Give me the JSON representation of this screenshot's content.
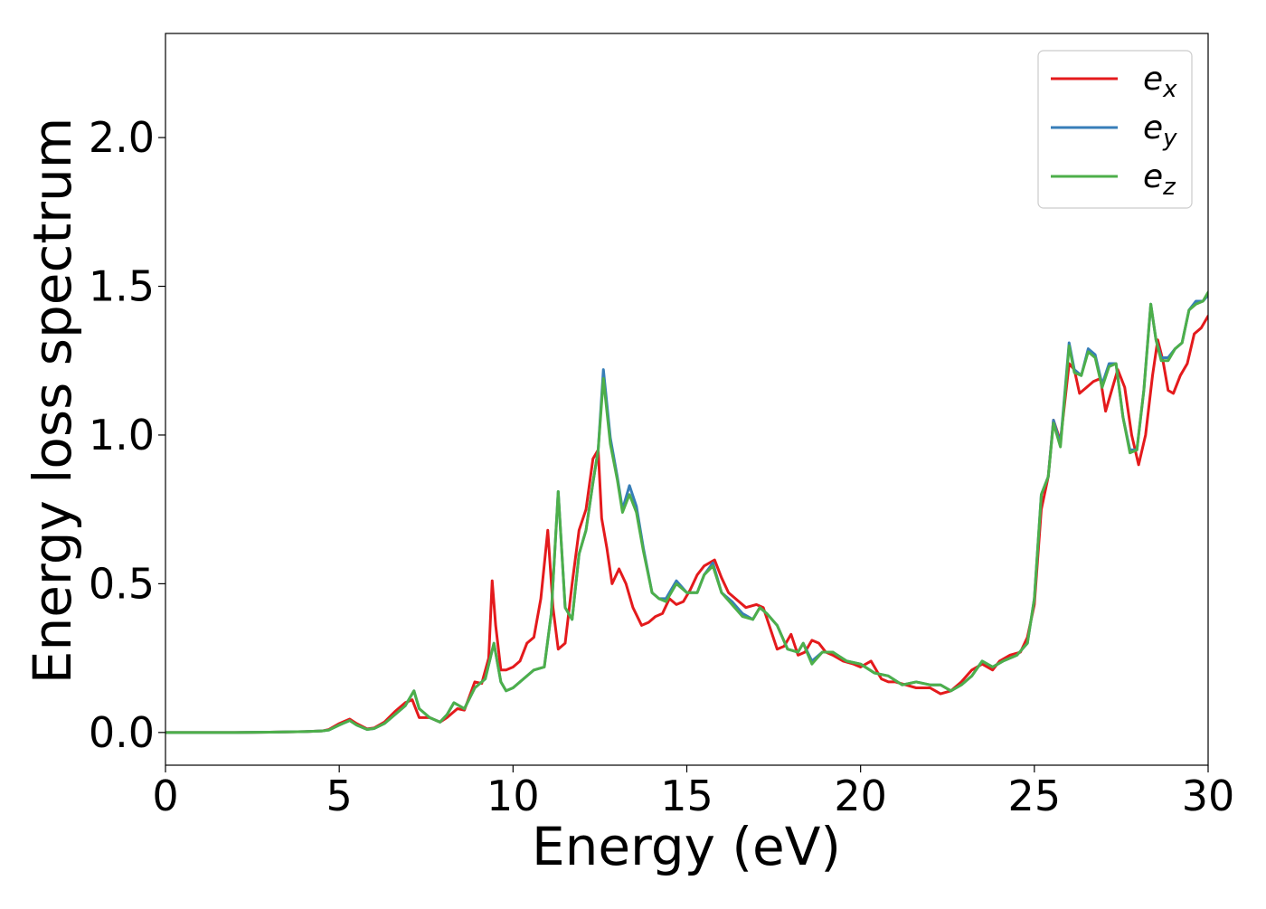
{
  "chart_data": {
    "type": "line",
    "title": "",
    "xlabel": "Energy (eV)",
    "ylabel": "Energy loss spectrum",
    "xlim": [
      0,
      30
    ],
    "ylim": [
      -0.11,
      2.35
    ],
    "xticks": [
      "0",
      "5",
      "10",
      "15",
      "20",
      "25",
      "30"
    ],
    "xtick_values": [
      0,
      5,
      10,
      15,
      20,
      25,
      30
    ],
    "yticks": [
      "0.0",
      "0.5",
      "1.0",
      "1.5",
      "2.0"
    ],
    "ytick_values": [
      0,
      0.5,
      1.0,
      1.5,
      2.0
    ],
    "grid": false,
    "legend_position": "top-right",
    "series": [
      {
        "name": "e_x",
        "label_base": "e",
        "label_sub": "x",
        "color": "#e41a1c",
        "x": [
          0,
          1,
          2,
          3,
          4,
          4.5,
          4.7,
          5.0,
          5.3,
          5.5,
          5.8,
          6.0,
          6.3,
          6.6,
          6.9,
          7.1,
          7.3,
          7.6,
          7.9,
          8.1,
          8.4,
          8.6,
          8.9,
          9.1,
          9.3,
          9.4,
          9.5,
          9.65,
          9.8,
          10.0,
          10.2,
          10.4,
          10.6,
          10.8,
          11.0,
          11.15,
          11.3,
          11.5,
          11.7,
          11.9,
          12.1,
          12.3,
          12.45,
          12.55,
          12.7,
          12.85,
          13.05,
          13.25,
          13.45,
          13.7,
          13.9,
          14.1,
          14.3,
          14.5,
          14.7,
          14.9,
          15.1,
          15.3,
          15.5,
          15.8,
          16.0,
          16.2,
          16.5,
          16.7,
          17.0,
          17.2,
          17.4,
          17.6,
          17.8,
          18.0,
          18.2,
          18.4,
          18.6,
          18.8,
          19.0,
          19.2,
          19.5,
          19.8,
          20.0,
          20.3,
          20.6,
          20.8,
          21.0,
          21.3,
          21.6,
          22.0,
          22.3,
          22.6,
          22.9,
          23.2,
          23.5,
          23.8,
          24.0,
          24.3,
          24.6,
          24.8,
          25.0,
          25.2,
          25.4,
          25.55,
          25.75,
          26.0,
          26.15,
          26.3,
          26.5,
          26.7,
          26.9,
          27.05,
          27.2,
          27.4,
          27.6,
          27.8,
          28.0,
          28.2,
          28.4,
          28.55,
          28.7,
          28.85,
          29.0,
          29.2,
          29.4,
          29.6,
          29.8,
          30.0
        ],
        "y": [
          0,
          0,
          0,
          0.001,
          0.003,
          0.005,
          0.01,
          0.03,
          0.045,
          0.03,
          0.012,
          0.015,
          0.035,
          0.07,
          0.1,
          0.11,
          0.05,
          0.05,
          0.035,
          0.05,
          0.08,
          0.075,
          0.17,
          0.165,
          0.25,
          0.51,
          0.36,
          0.21,
          0.21,
          0.22,
          0.24,
          0.3,
          0.32,
          0.45,
          0.68,
          0.42,
          0.28,
          0.3,
          0.5,
          0.68,
          0.75,
          0.92,
          0.95,
          0.72,
          0.62,
          0.5,
          0.55,
          0.5,
          0.42,
          0.36,
          0.37,
          0.39,
          0.4,
          0.45,
          0.43,
          0.44,
          0.48,
          0.53,
          0.56,
          0.58,
          0.52,
          0.47,
          0.44,
          0.42,
          0.43,
          0.42,
          0.35,
          0.28,
          0.29,
          0.33,
          0.26,
          0.27,
          0.31,
          0.3,
          0.27,
          0.26,
          0.24,
          0.23,
          0.22,
          0.24,
          0.18,
          0.17,
          0.17,
          0.16,
          0.15,
          0.15,
          0.13,
          0.14,
          0.17,
          0.21,
          0.23,
          0.21,
          0.24,
          0.26,
          0.27,
          0.32,
          0.43,
          0.75,
          0.86,
          1.05,
          0.98,
          1.24,
          1.22,
          1.14,
          1.16,
          1.18,
          1.19,
          1.08,
          1.14,
          1.22,
          1.16,
          1.0,
          0.9,
          1.0,
          1.2,
          1.32,
          1.25,
          1.15,
          1.14,
          1.2,
          1.24,
          1.34,
          1.36,
          1.4
        ]
      },
      {
        "name": "e_y",
        "label_base": "e",
        "label_sub": "y",
        "color": "#377eb8",
        "x": [
          0,
          1,
          2,
          3,
          4,
          4.5,
          4.7,
          5.0,
          5.3,
          5.5,
          5.8,
          6.0,
          6.3,
          6.6,
          6.9,
          7.15,
          7.3,
          7.6,
          7.9,
          8.1,
          8.3,
          8.6,
          8.9,
          9.2,
          9.45,
          9.65,
          9.8,
          10.0,
          10.3,
          10.6,
          10.9,
          11.1,
          11.3,
          11.5,
          11.7,
          11.9,
          12.1,
          12.3,
          12.45,
          12.6,
          12.8,
          13.0,
          13.15,
          13.35,
          13.55,
          13.75,
          14.0,
          14.2,
          14.4,
          14.7,
          15.0,
          15.3,
          15.5,
          15.75,
          16.0,
          16.3,
          16.6,
          16.9,
          17.1,
          17.3,
          17.6,
          17.9,
          18.2,
          18.35,
          18.6,
          18.9,
          19.2,
          19.6,
          20.0,
          20.4,
          20.8,
          21.2,
          21.6,
          22.0,
          22.3,
          22.6,
          22.9,
          23.2,
          23.5,
          23.8,
          24.1,
          24.5,
          24.8,
          25.0,
          25.2,
          25.4,
          25.55,
          25.75,
          26.0,
          26.15,
          26.35,
          26.55,
          26.75,
          26.95,
          27.15,
          27.35,
          27.55,
          27.75,
          27.95,
          28.15,
          28.35,
          28.5,
          28.65,
          28.85,
          29.05,
          29.25,
          29.45,
          29.65,
          29.85,
          30.0
        ],
        "y": [
          0,
          0,
          0,
          0.001,
          0.003,
          0.005,
          0.008,
          0.025,
          0.04,
          0.025,
          0.01,
          0.013,
          0.03,
          0.06,
          0.09,
          0.14,
          0.08,
          0.05,
          0.035,
          0.06,
          0.1,
          0.08,
          0.15,
          0.18,
          0.3,
          0.17,
          0.14,
          0.15,
          0.18,
          0.21,
          0.22,
          0.4,
          0.81,
          0.42,
          0.38,
          0.6,
          0.68,
          0.84,
          0.95,
          1.22,
          0.99,
          0.86,
          0.75,
          0.83,
          0.76,
          0.62,
          0.47,
          0.45,
          0.45,
          0.51,
          0.47,
          0.47,
          0.53,
          0.57,
          0.47,
          0.44,
          0.4,
          0.38,
          0.42,
          0.4,
          0.36,
          0.28,
          0.27,
          0.3,
          0.24,
          0.27,
          0.27,
          0.24,
          0.23,
          0.2,
          0.19,
          0.16,
          0.17,
          0.16,
          0.16,
          0.14,
          0.16,
          0.19,
          0.24,
          0.22,
          0.24,
          0.26,
          0.3,
          0.45,
          0.8,
          0.86,
          1.05,
          0.97,
          1.31,
          1.22,
          1.2,
          1.29,
          1.27,
          1.17,
          1.24,
          1.24,
          1.06,
          0.95,
          0.95,
          1.15,
          1.44,
          1.32,
          1.26,
          1.26,
          1.29,
          1.31,
          1.42,
          1.45,
          1.45,
          1.47
        ]
      },
      {
        "name": "e_z",
        "label_base": "e",
        "label_sub": "z",
        "color": "#4daf4a",
        "x": [
          0,
          1,
          2,
          3,
          4,
          4.5,
          4.7,
          5.0,
          5.3,
          5.5,
          5.8,
          6.0,
          6.3,
          6.6,
          6.9,
          7.15,
          7.3,
          7.6,
          7.9,
          8.1,
          8.3,
          8.6,
          8.9,
          9.2,
          9.45,
          9.65,
          9.8,
          10.0,
          10.3,
          10.6,
          10.9,
          11.1,
          11.3,
          11.5,
          11.7,
          11.9,
          12.1,
          12.3,
          12.45,
          12.6,
          12.8,
          13.0,
          13.15,
          13.35,
          13.55,
          13.75,
          14.0,
          14.2,
          14.4,
          14.7,
          15.0,
          15.3,
          15.5,
          15.75,
          16.0,
          16.3,
          16.6,
          16.9,
          17.1,
          17.3,
          17.6,
          17.9,
          18.2,
          18.35,
          18.6,
          18.9,
          19.2,
          19.6,
          20.0,
          20.4,
          20.8,
          21.2,
          21.6,
          22.0,
          22.3,
          22.6,
          22.9,
          23.2,
          23.5,
          23.8,
          24.1,
          24.5,
          24.8,
          25.0,
          25.2,
          25.4,
          25.55,
          25.75,
          26.0,
          26.15,
          26.35,
          26.55,
          26.75,
          26.95,
          27.15,
          27.35,
          27.55,
          27.75,
          27.95,
          28.15,
          28.35,
          28.5,
          28.65,
          28.85,
          29.05,
          29.25,
          29.45,
          29.65,
          29.85,
          30.0
        ],
        "y": [
          0,
          0,
          0,
          0.001,
          0.003,
          0.005,
          0.008,
          0.025,
          0.04,
          0.025,
          0.01,
          0.013,
          0.03,
          0.06,
          0.09,
          0.14,
          0.08,
          0.05,
          0.035,
          0.06,
          0.1,
          0.08,
          0.15,
          0.18,
          0.3,
          0.17,
          0.14,
          0.15,
          0.18,
          0.21,
          0.22,
          0.4,
          0.81,
          0.42,
          0.38,
          0.6,
          0.68,
          0.84,
          0.95,
          1.19,
          0.97,
          0.85,
          0.74,
          0.8,
          0.74,
          0.61,
          0.47,
          0.45,
          0.44,
          0.5,
          0.47,
          0.47,
          0.53,
          0.56,
          0.47,
          0.43,
          0.39,
          0.38,
          0.42,
          0.4,
          0.36,
          0.28,
          0.27,
          0.3,
          0.23,
          0.27,
          0.27,
          0.24,
          0.23,
          0.2,
          0.19,
          0.16,
          0.17,
          0.16,
          0.16,
          0.14,
          0.16,
          0.19,
          0.24,
          0.22,
          0.24,
          0.26,
          0.3,
          0.45,
          0.8,
          0.86,
          1.04,
          0.96,
          1.3,
          1.21,
          1.2,
          1.28,
          1.26,
          1.16,
          1.23,
          1.24,
          1.06,
          0.94,
          0.95,
          1.15,
          1.44,
          1.32,
          1.25,
          1.25,
          1.29,
          1.31,
          1.42,
          1.44,
          1.45,
          1.48
        ]
      }
    ]
  }
}
